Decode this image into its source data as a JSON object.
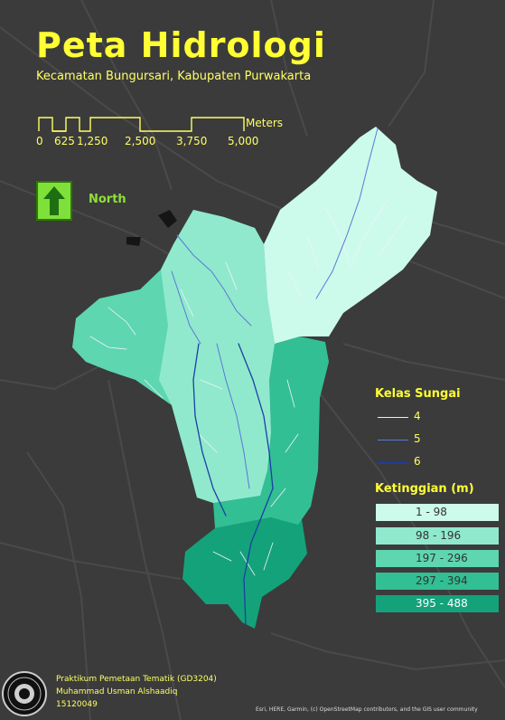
{
  "title": "Peta Hidrologi",
  "subtitle": "Kecamatan Bungursari, Kabupaten Purwakarta",
  "scale_bar": {
    "ticks": [
      "0",
      "625",
      "1,250",
      "2,500",
      "3,750",
      "5,000"
    ],
    "unit": "Meters"
  },
  "north": {
    "label": "North",
    "icon": "north-arrow-icon"
  },
  "legend": {
    "river_heading": "Kelas Sungai",
    "rivers": [
      {
        "label": "4",
        "color": "#e8ecff"
      },
      {
        "label": "5",
        "color": "#5a78d8"
      },
      {
        "label": "6",
        "color": "#1c3ea8"
      }
    ],
    "elevation_heading": "Ketinggian (m)",
    "elevation": [
      {
        "label": "1 - 98",
        "color": "#ccfbeb"
      },
      {
        "label": "98 - 196",
        "color": "#90e9cc"
      },
      {
        "label": "197 - 296",
        "color": "#5ed6b0"
      },
      {
        "label": "297 - 394",
        "color": "#32bf93"
      },
      {
        "label": "395 - 488",
        "color": "#14a27a"
      }
    ]
  },
  "credits": {
    "line1": "Praktikum Pemetaan Tematik (GD3204)",
    "line2": "Muhammad Usman Alshaadiq",
    "line3": "15120049"
  },
  "attribution": "Esri, HERE, Garmin, (c) OpenStreetMap contributors, and the GIS user community",
  "colors": {
    "background": "#3b3b3b",
    "title": "#ffff33",
    "road": "#4c4c4c"
  }
}
